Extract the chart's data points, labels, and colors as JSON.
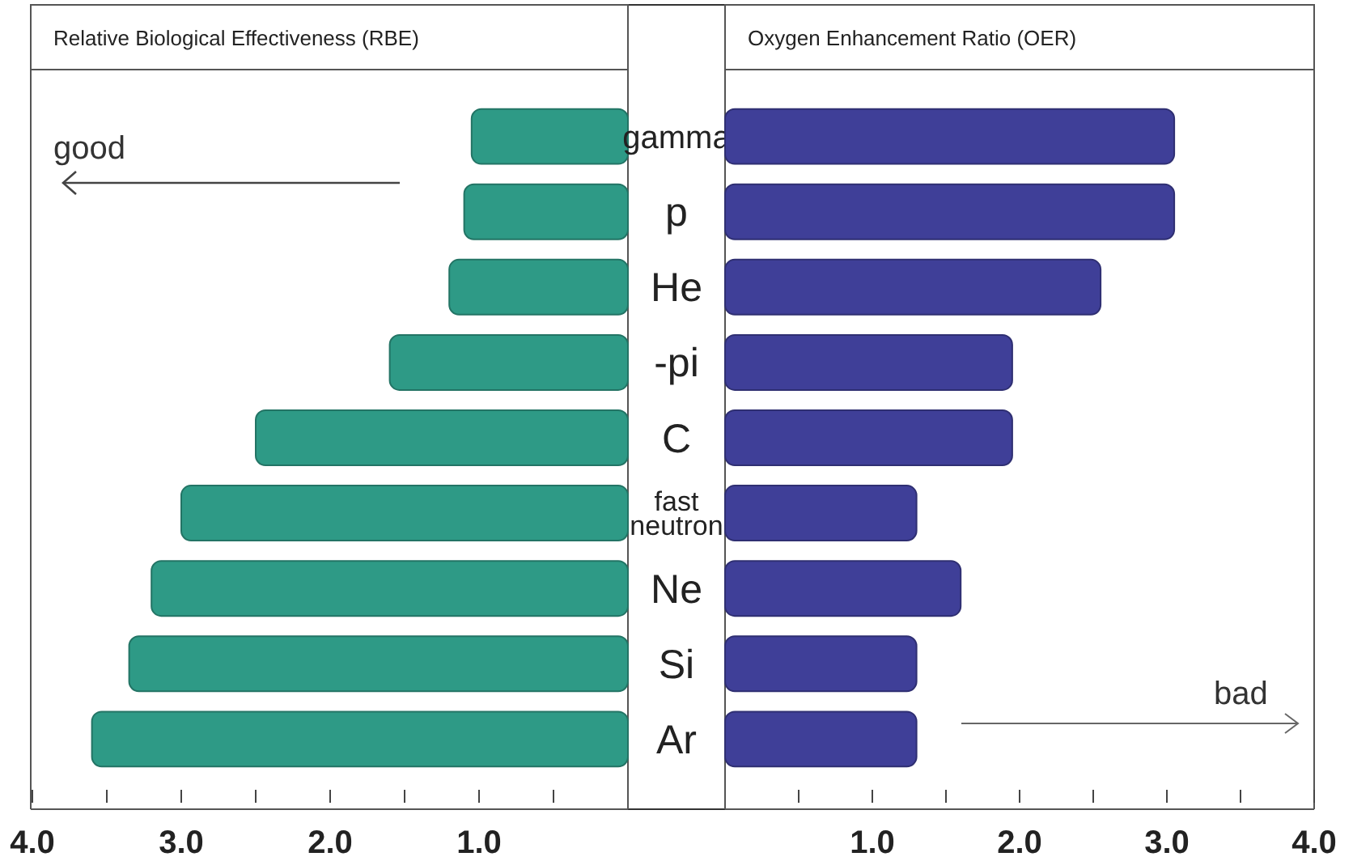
{
  "chart_data": [
    {
      "type": "bar",
      "orientation": "horizontal",
      "title": "Relative Biological Effectiveness (RBE)",
      "categories": [
        "gamma",
        "p",
        "He",
        "-pi",
        "C",
        "fast neutron",
        "Ne",
        "Si",
        "Ar"
      ],
      "values": [
        1.05,
        1.1,
        1.2,
        1.6,
        2.5,
        3.0,
        3.2,
        3.35,
        3.6
      ],
      "color": "#2e9a86",
      "xlim": [
        4,
        0
      ],
      "xticks": [
        {
          "value": 4,
          "label": "4.0"
        },
        {
          "value": 3.5,
          "label": null
        },
        {
          "value": 3,
          "label": "3.0"
        },
        {
          "value": 2.5,
          "label": null
        },
        {
          "value": 2,
          "label": "2.0"
        },
        {
          "value": 1.5,
          "label": null
        },
        {
          "value": 1,
          "label": "1.0"
        },
        {
          "value": 0.5,
          "label": null
        }
      ],
      "annotations": [
        "good"
      ],
      "grid": false
    },
    {
      "type": "bar",
      "orientation": "horizontal",
      "title": "Oxygen Enhancement Ratio (OER)",
      "categories": [
        null,
        null,
        null,
        null,
        null,
        null,
        null,
        null,
        null
      ],
      "values": [
        3.05,
        3.05,
        2.55,
        1.95,
        1.95,
        1.3,
        1.6,
        1.3,
        1.3
      ],
      "color": "#3f3f98",
      "xlim": [
        0,
        4
      ],
      "xticks": [
        {
          "value": 0.5,
          "label": null
        },
        {
          "value": 1,
          "label": "1.0"
        },
        {
          "value": 1.5,
          "label": null
        },
        {
          "value": 2,
          "label": "2.0"
        },
        {
          "value": 2.5,
          "label": null
        },
        {
          "value": 3,
          "label": "3.0"
        },
        {
          "value": 3.5,
          "label": null
        },
        {
          "value": 4,
          "label": "4.0"
        }
      ],
      "annotations": [
        "bad"
      ],
      "grid": false
    }
  ]
}
